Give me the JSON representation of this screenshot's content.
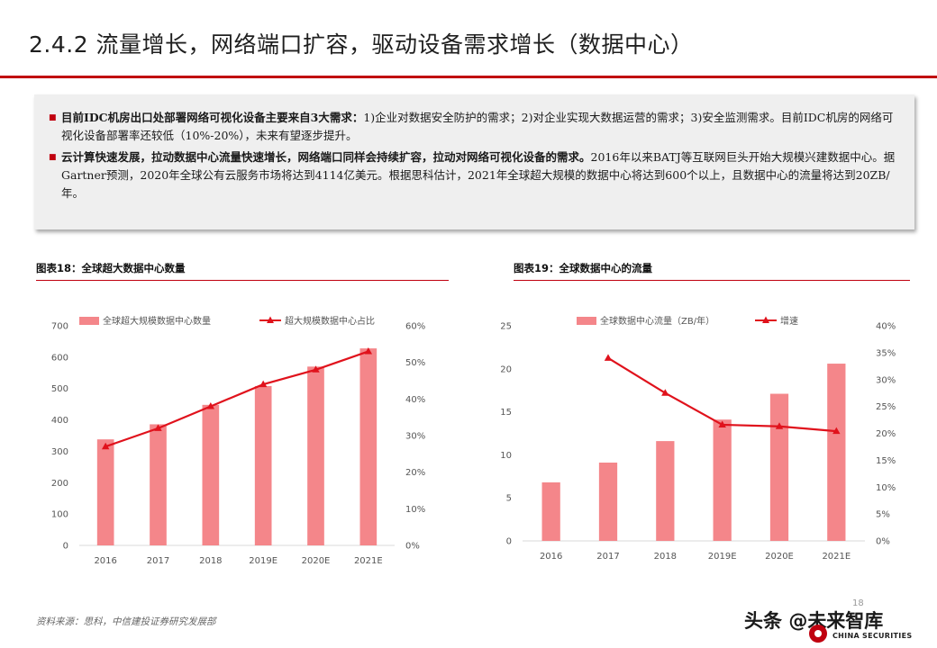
{
  "header": {
    "title": "2.4.2 流量增长，网络端口扩容，驱动设备需求增长（数据中心）"
  },
  "summary": {
    "bullets": [
      {
        "bold": "目前IDC机房出口处部署网络可视化设备主要来自3大需求：",
        "text": "1)企业对数据安全防护的需求；2)对企业实现大数据运营的需求；3)安全监测需求。目前IDC机房的网络可视化设备部署率还较低（10%-20%），未来有望逐步提升。"
      },
      {
        "bold": "云计算快速发展，拉动数据中心流量快速增长，网络端口同样会持续扩容，拉动对网络可视化设备的需求。",
        "text": "2016年以来BATJ等互联网巨头开始大规模兴建数据中心。据Gartner预测，2020年全球公有云服务市场将达到4114亿美元。根据思科估计，2021年全球超大规模的数据中心将达到600个以上，且数据中心的流量将达到20ZB/年。"
      }
    ]
  },
  "chart_data": [
    {
      "type": "bar",
      "title": "图表18：全球超大数据中心数量",
      "categories": [
        "2016",
        "2017",
        "2018",
        "2019E",
        "2020E",
        "2021E"
      ],
      "series": [
        {
          "name": "全球超大规模数据中心数量",
          "type": "bar",
          "axis": "left",
          "values": [
            338,
            386,
            448,
            508,
            570,
            628
          ]
        },
        {
          "name": "超大规模数据中心占比",
          "type": "line",
          "axis": "right",
          "values": [
            0.27,
            0.32,
            0.38,
            0.44,
            0.48,
            0.53
          ]
        }
      ],
      "ylim": [
        0,
        700
      ],
      "yticks": [
        "0",
        "100",
        "200",
        "300",
        "400",
        "500",
        "600",
        "700"
      ],
      "y2lim": [
        0,
        0.6
      ],
      "y2ticks": [
        "0%",
        "10%",
        "20%",
        "30%",
        "40%",
        "50%",
        "60%"
      ],
      "legend": "top",
      "grid": false,
      "colors": {
        "bar": "#f4868a",
        "line": "#e0121c"
      }
    },
    {
      "type": "bar",
      "title": "图表19：全球数据中心的流量",
      "categories": [
        "2016",
        "2017",
        "2018",
        "2019E",
        "2020E",
        "2021E"
      ],
      "series": [
        {
          "name": "全球数据中心流量（ZB/年）",
          "type": "bar",
          "axis": "left",
          "values": [
            6.8,
            9.1,
            11.6,
            14.1,
            17.1,
            20.6
          ]
        },
        {
          "name": "增速",
          "type": "line",
          "axis": "right",
          "values": [
            null,
            0.34,
            0.275,
            0.216,
            0.213,
            0.204
          ]
        }
      ],
      "ylim": [
        0,
        25
      ],
      "yticks": [
        "0",
        "5",
        "10",
        "15",
        "20",
        "25"
      ],
      "y2lim": [
        0,
        0.4
      ],
      "y2ticks": [
        "0%",
        "5%",
        "10%",
        "15%",
        "20%",
        "25%",
        "30%",
        "35%",
        "40%"
      ],
      "legend": "top",
      "grid": false,
      "colors": {
        "bar": "#f4868a",
        "line": "#e0121c"
      }
    }
  ],
  "footer": {
    "source": "资料来源：思科，中信建投证券研究发展部",
    "page": "18",
    "watermark_prefix": "头条",
    "watermark_at": "@",
    "watermark_name": "未来智库",
    "brand": "CHINA SECURITIES"
  }
}
